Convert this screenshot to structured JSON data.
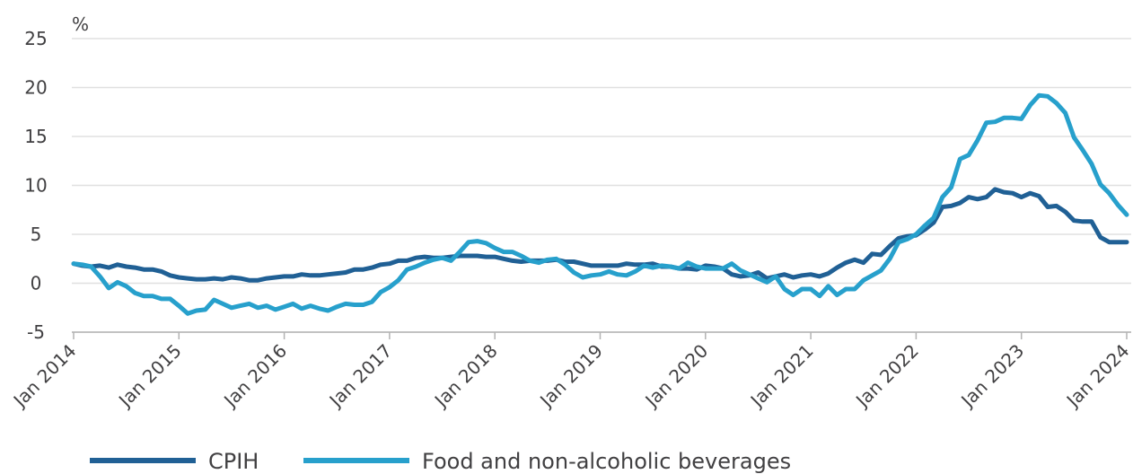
{
  "chart_data": {
    "type": "line",
    "y_unit": "%",
    "categories": [
      "Jan 2014",
      "Feb 2014",
      "Mar 2014",
      "Apr 2014",
      "May 2014",
      "Jun 2014",
      "Jul 2014",
      "Aug 2014",
      "Sep 2014",
      "Oct 2014",
      "Nov 2014",
      "Dec 2014",
      "Jan 2015",
      "Feb 2015",
      "Mar 2015",
      "Apr 2015",
      "May 2015",
      "Jun 2015",
      "Jul 2015",
      "Aug 2015",
      "Sep 2015",
      "Oct 2015",
      "Nov 2015",
      "Dec 2015",
      "Jan 2016",
      "Feb 2016",
      "Mar 2016",
      "Apr 2016",
      "May 2016",
      "Jun 2016",
      "Jul 2016",
      "Aug 2016",
      "Sep 2016",
      "Oct 2016",
      "Nov 2016",
      "Dec 2016",
      "Jan 2017",
      "Feb 2017",
      "Mar 2017",
      "Apr 2017",
      "May 2017",
      "Jun 2017",
      "Jul 2017",
      "Aug 2017",
      "Sep 2017",
      "Oct 2017",
      "Nov 2017",
      "Dec 2017",
      "Jan 2018",
      "Feb 2018",
      "Mar 2018",
      "Apr 2018",
      "May 2018",
      "Jun 2018",
      "Jul 2018",
      "Aug 2018",
      "Sep 2018",
      "Oct 2018",
      "Nov 2018",
      "Dec 2018",
      "Jan 2019",
      "Feb 2019",
      "Mar 2019",
      "Apr 2019",
      "May 2019",
      "Jun 2019",
      "Jul 2019",
      "Aug 2019",
      "Sep 2019",
      "Oct 2019",
      "Nov 2019",
      "Dec 2019",
      "Jan 2020",
      "Feb 2020",
      "Mar 2020",
      "Apr 2020",
      "May 2020",
      "Jun 2020",
      "Jul 2020",
      "Aug 2020",
      "Sep 2020",
      "Oct 2020",
      "Nov 2020",
      "Dec 2020",
      "Jan 2021",
      "Feb 2021",
      "Mar 2021",
      "Apr 2021",
      "May 2021",
      "Jun 2021",
      "Jul 2021",
      "Aug 2021",
      "Sep 2021",
      "Oct 2021",
      "Nov 2021",
      "Dec 2021",
      "Jan 2022",
      "Feb 2022",
      "Mar 2022",
      "Apr 2022",
      "May 2022",
      "Jun 2022",
      "Jul 2022",
      "Aug 2022",
      "Sep 2022",
      "Oct 2022",
      "Nov 2022",
      "Dec 2022",
      "Jan 2023",
      "Feb 2023",
      "Mar 2023",
      "Apr 2023",
      "May 2023",
      "Jun 2023",
      "Jul 2023",
      "Aug 2023",
      "Sep 2023",
      "Oct 2023",
      "Nov 2023",
      "Dec 2023",
      "Jan 2024"
    ],
    "xticks": [
      "Jan 2014",
      "Jan 2015",
      "Jan 2016",
      "Jan 2017",
      "Jan 2018",
      "Jan 2019",
      "Jan 2020",
      "Jan 2021",
      "Jan 2022",
      "Jan 2023",
      "Jan 2024"
    ],
    "series": [
      {
        "name": "CPIH",
        "color": "#206095",
        "values": [
          2.0,
          1.8,
          1.7,
          1.8,
          1.6,
          1.9,
          1.7,
          1.6,
          1.4,
          1.4,
          1.2,
          0.8,
          0.6,
          0.5,
          0.4,
          0.4,
          0.5,
          0.4,
          0.6,
          0.5,
          0.3,
          0.3,
          0.5,
          0.6,
          0.7,
          0.7,
          0.9,
          0.8,
          0.8,
          0.9,
          1.0,
          1.1,
          1.4,
          1.4,
          1.6,
          1.9,
          2.0,
          2.3,
          2.3,
          2.6,
          2.7,
          2.6,
          2.6,
          2.7,
          2.8,
          2.8,
          2.8,
          2.7,
          2.7,
          2.5,
          2.3,
          2.2,
          2.3,
          2.3,
          2.3,
          2.4,
          2.2,
          2.2,
          2.0,
          1.8,
          1.8,
          1.8,
          1.8,
          2.0,
          1.9,
          1.9,
          2.0,
          1.7,
          1.7,
          1.5,
          1.5,
          1.4,
          1.8,
          1.7,
          1.5,
          0.9,
          0.7,
          0.8,
          1.1,
          0.5,
          0.7,
          0.9,
          0.6,
          0.8,
          0.9,
          0.7,
          1.0,
          1.6,
          2.1,
          2.4,
          2.1,
          3.0,
          2.9,
          3.8,
          4.6,
          4.8,
          4.9,
          5.5,
          6.2,
          7.8,
          7.9,
          8.2,
          8.8,
          8.6,
          8.8,
          9.6,
          9.3,
          9.2,
          8.8,
          9.2,
          8.9,
          7.8,
          7.9,
          7.3,
          6.4,
          6.3,
          6.3,
          4.7,
          4.2,
          4.2,
          4.2
        ]
      },
      {
        "name": "Food and non-alcoholic beverages",
        "color": "#27a0cc",
        "values": [
          2.0,
          1.9,
          1.7,
          0.7,
          -0.5,
          0.1,
          -0.3,
          -1.0,
          -1.3,
          -1.3,
          -1.6,
          -1.6,
          -2.3,
          -3.1,
          -2.8,
          -2.7,
          -1.7,
          -2.1,
          -2.5,
          -2.3,
          -2.1,
          -2.5,
          -2.3,
          -2.7,
          -2.4,
          -2.1,
          -2.6,
          -2.3,
          -2.6,
          -2.8,
          -2.4,
          -2.1,
          -2.2,
          -2.2,
          -1.9,
          -0.9,
          -0.4,
          0.3,
          1.4,
          1.7,
          2.1,
          2.4,
          2.6,
          2.3,
          3.2,
          4.2,
          4.3,
          4.1,
          3.6,
          3.2,
          3.2,
          2.8,
          2.3,
          2.1,
          2.4,
          2.5,
          1.9,
          1.1,
          0.6,
          0.8,
          0.9,
          1.2,
          0.9,
          0.8,
          1.2,
          1.8,
          1.6,
          1.8,
          1.7,
          1.5,
          2.1,
          1.7,
          1.5,
          1.5,
          1.5,
          2.0,
          1.3,
          0.9,
          0.5,
          0.1,
          0.7,
          -0.6,
          -1.2,
          -0.6,
          -0.6,
          -1.3,
          -0.3,
          -1.2,
          -0.6,
          -0.6,
          0.3,
          0.8,
          1.3,
          2.5,
          4.2,
          4.5,
          5.0,
          5.9,
          6.7,
          8.8,
          9.8,
          12.7,
          13.1,
          14.6,
          16.4,
          16.5,
          16.9,
          16.9,
          16.8,
          18.2,
          19.2,
          19.1,
          18.4,
          17.4,
          14.9,
          13.6,
          12.2,
          10.1,
          9.2,
          8.0,
          7.0
        ]
      }
    ],
    "ylim": [
      -5,
      25
    ],
    "yticks": [
      -5,
      0,
      5,
      10,
      15,
      20,
      25
    ],
    "grid": true
  }
}
